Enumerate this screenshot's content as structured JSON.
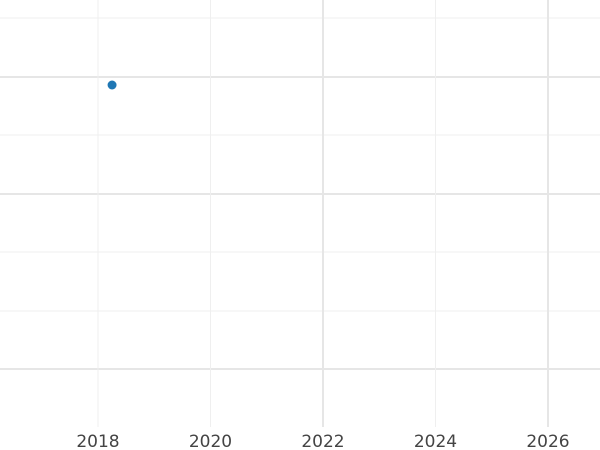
{
  "chart_data": {
    "type": "scatter",
    "title": "",
    "xlabel": "",
    "ylabel": "",
    "x_ticks": [
      "2018",
      "2020",
      "2022",
      "2024",
      "2026"
    ],
    "xlim": [
      2016.25,
      2026.9
    ],
    "y_tick_labels_shown": false,
    "grid": true,
    "series": [
      {
        "color": "#1f77b4",
        "points": [
          {
            "x": 2018.25
          }
        ]
      }
    ]
  }
}
